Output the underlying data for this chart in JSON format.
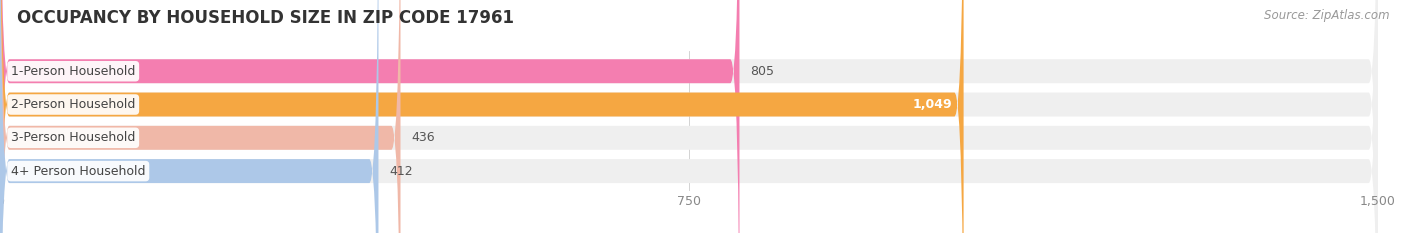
{
  "title": "OCCUPANCY BY HOUSEHOLD SIZE IN ZIP CODE 17961",
  "source": "Source: ZipAtlas.com",
  "categories": [
    "1-Person Household",
    "2-Person Household",
    "3-Person Household",
    "4+ Person Household"
  ],
  "values": [
    805,
    1049,
    436,
    412
  ],
  "bar_colors": [
    "#f47eb0",
    "#f5a742",
    "#f0b8a8",
    "#adc8e8"
  ],
  "bar_bg_color": "#efefef",
  "value_labels": [
    "805",
    "1,049",
    "436",
    "412"
  ],
  "label_inside": [
    false,
    true,
    false,
    false
  ],
  "xlim": [
    0,
    1500
  ],
  "xticks": [
    0,
    750,
    1500
  ],
  "figsize": [
    14.06,
    2.33
  ],
  "dpi": 100,
  "bar_height": 0.72,
  "background_color": "#ffffff",
  "title_fontsize": 12,
  "tick_fontsize": 9,
  "label_fontsize": 9,
  "category_fontsize": 9,
  "title_color": "#333333",
  "source_color": "#999999",
  "tick_color": "#888888",
  "value_color_outside": "#555555",
  "value_color_inside": "#ffffff"
}
